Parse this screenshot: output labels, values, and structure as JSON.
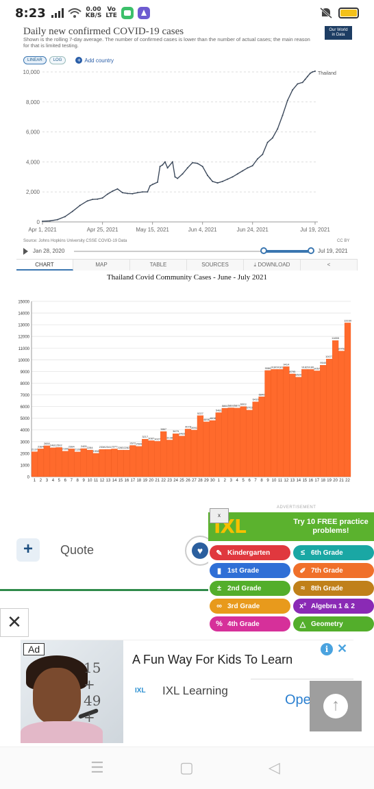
{
  "status_bar": {
    "time": "8:23",
    "net_speed": "0.00",
    "net_unit": "KB/S",
    "carrier_top": "Vo",
    "carrier_bottom": "LTE"
  },
  "owid_chart": {
    "title": "Daily new confirmed COVID-19 cases",
    "subtitle": "Shown is the rolling 7-day average. The number of confirmed cases is lower than the number of actual cases; the main reason for that is limited testing.",
    "logo_text_1": "Our World",
    "logo_text_2": "in Data",
    "buttons": {
      "linear": "LINEAR",
      "log": "LOG",
      "add_country": "Add country"
    },
    "source": "Source: Johns Hopkins University CSSE COVID-19 Data",
    "license": "CC BY",
    "timeline": {
      "start": "Jan 28, 2020",
      "end": "Jul 19, 2021"
    },
    "tabs": [
      "CHART",
      "MAP",
      "TABLE",
      "SOURCES",
      "DOWNLOAD",
      ""
    ],
    "colors": {
      "line": "#3d4a5c",
      "accent": "#3a76b0"
    }
  },
  "chart_data": [
    {
      "type": "line",
      "title": "Daily new confirmed COVID-19 cases",
      "x_ticks": [
        "Apr 1, 2021",
        "Apr 25, 2021",
        "May 15, 2021",
        "Jun 4, 2021",
        "Jun 24, 2021",
        "Jul 19, 2021"
      ],
      "x_tick_days": [
        0,
        24,
        44,
        64,
        84,
        109
      ],
      "y_ticks": [
        0,
        2000,
        4000,
        6000,
        8000,
        10000
      ],
      "y_tick_labels": [
        "0",
        "2,000",
        "4,000",
        "6,000",
        "8,000",
        "10,000"
      ],
      "ylim": [
        0,
        10000
      ],
      "xlim_days": [
        0,
        109
      ],
      "grid": true,
      "series": [
        {
          "name": "Thailand",
          "x_days": [
            0,
            3,
            6,
            9,
            12,
            15,
            18,
            20,
            22,
            24,
            26,
            28,
            30,
            32,
            34,
            36,
            38,
            40,
            42,
            43,
            44,
            46,
            47,
            48,
            49,
            50,
            52,
            53,
            54,
            56,
            58,
            60,
            62,
            64,
            66,
            67,
            68,
            70,
            72,
            74,
            76,
            78,
            80,
            82,
            84,
            86,
            88,
            90,
            92,
            94,
            96,
            98,
            100,
            102,
            104,
            105,
            106,
            107,
            108,
            109
          ],
          "values": [
            40,
            70,
            150,
            350,
            700,
            1100,
            1400,
            1500,
            1520,
            1600,
            1850,
            2050,
            2200,
            1950,
            1900,
            1880,
            1950,
            2000,
            2000,
            2400,
            2500,
            2650,
            3700,
            3800,
            4000,
            3600,
            4000,
            3000,
            2900,
            3200,
            3600,
            3950,
            3900,
            3700,
            3100,
            2900,
            2700,
            2600,
            2700,
            2850,
            3000,
            3200,
            3400,
            3600,
            3750,
            4200,
            4500,
            5300,
            5600,
            6200,
            7100,
            8100,
            8800,
            9200,
            9300,
            9500,
            9700,
            9900,
            10000,
            10050
          ]
        }
      ]
    },
    {
      "type": "bar",
      "title": "Thailand Covid Community Cases - June - July 2021",
      "ylim": [
        0,
        15000
      ],
      "y_ticks": [
        0,
        1000,
        2000,
        3000,
        4000,
        5000,
        6000,
        7000,
        8000,
        9000,
        10000,
        11000,
        12000,
        13000,
        14000,
        15000
      ],
      "grid": true,
      "categories": [
        "1",
        "2",
        "3",
        "4",
        "5",
        "6",
        "7",
        "8",
        "9",
        "10",
        "11",
        "12",
        "13",
        "14",
        "15",
        "16",
        "17",
        "18",
        "19",
        "20",
        "21",
        "22",
        "23",
        "24",
        "25",
        "26",
        "27",
        "28",
        "29",
        "30",
        "1",
        "2",
        "3",
        "4",
        "5",
        "6",
        "7",
        "8",
        "9",
        "10",
        "11",
        "12",
        "13",
        "14",
        "15",
        "16",
        "17",
        "18",
        "19",
        "20",
        "21",
        "22"
      ],
      "series": [
        {
          "name": "",
          "values": [
            2137,
            2384,
            2650,
            2481,
            2502,
            2186,
            2384,
            2128,
            2405,
            2284,
            1998,
            2338,
            2341,
            2377,
            2283,
            2282,
            2672,
            2599,
            3217,
            3087,
            3027,
            3867,
            3138,
            3679,
            3483,
            4078,
            3991,
            5227,
            4698,
            4808,
            5481,
            5860,
            5893,
            5877,
            6003,
            5703,
            6410,
            6840,
            9088,
            9180,
            9181,
            9414,
            8795,
            8520,
            9182,
            9180,
            9057,
            9540,
            10073,
            11655,
            10752,
            13160
          ]
        }
      ],
      "colors": {
        "bar": "#ff6a2c"
      }
    }
  ],
  "ad_section": {
    "quote_label": "Quote",
    "ixl": {
      "close": "x",
      "advertisement": "ADVERTISEMENT",
      "logo": "IXL",
      "try_text": "Try 10 FREE practice problems!",
      "grades": [
        {
          "label": "Kindergarten",
          "color": "#e0383e",
          "icon": "crayon-icon"
        },
        {
          "label": "6th Grade",
          "color": "#1aa7a4",
          "icon": "ruler-icon"
        },
        {
          "label": "1st Grade",
          "color": "#2f6fd6",
          "icon": "cup-icon"
        },
        {
          "label": "7th Grade",
          "color": "#f0702a",
          "icon": "pencil-icon"
        },
        {
          "label": "2nd Grade",
          "color": "#53ae2b",
          "icon": "plus-minus-icon"
        },
        {
          "label": "8th Grade",
          "color": "#c0801a",
          "icon": "approx-icon"
        },
        {
          "label": "3rd Grade",
          "color": "#e89a1c",
          "icon": "infinity-icon"
        },
        {
          "label": "Algebra 1 & 2",
          "color": "#8a2ab5",
          "icon": "x-squared-icon"
        },
        {
          "label": "4th Grade",
          "color": "#d6309a",
          "icon": "percent-icon"
        },
        {
          "label": "Geometry",
          "color": "#53ae2b",
          "icon": "triangle-icon"
        }
      ]
    },
    "banner": {
      "badge": "Ad",
      "headline": "A Fun Way For Kids To Learn",
      "brand_logo": "IXL",
      "brand": "IXL Learning",
      "cta": "Ope",
      "board_lines": [
        "15",
        "+",
        "49",
        "+"
      ]
    }
  }
}
